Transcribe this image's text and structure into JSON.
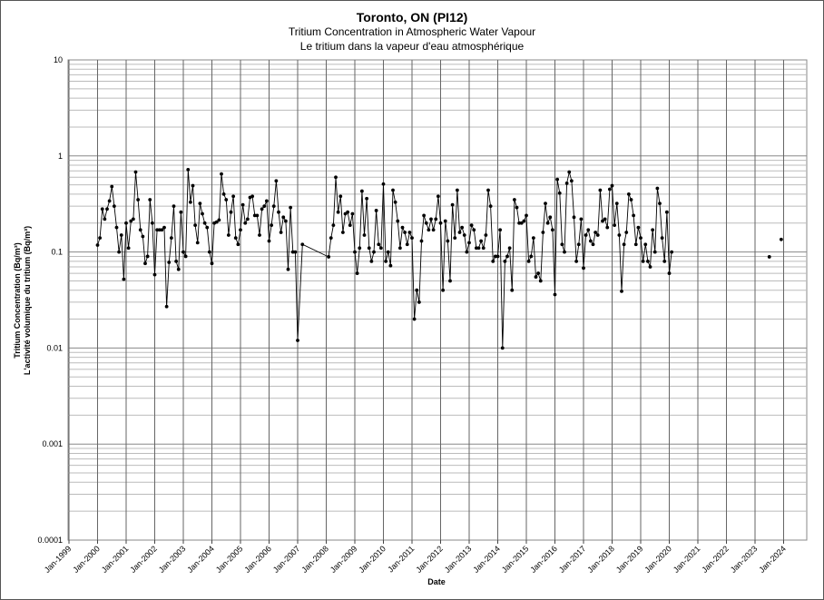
{
  "chart_data": {
    "type": "scatter",
    "title": "Toronto, ON (PI12)",
    "subtitle_en": "Tritium Concentration in Atmospheric Water Vapour",
    "subtitle_fr": "Le tritium dans la vapeur d'eau atmosphérique",
    "xlabel": "Date",
    "ylabel_en": "Tritium Concentration (Bq/m³)",
    "ylabel_fr": "L'activité volumique du tritium (Bq/m³)",
    "y_scale": "log",
    "ylim": [
      0.0001,
      10
    ],
    "y_ticks": [
      "10",
      "1",
      "0.1",
      "0.01",
      "0.001",
      "0.0001"
    ],
    "x_ticks": [
      "Jan-1999",
      "Jan-2000",
      "Jan-2001",
      "Jan-2002",
      "Jan-2003",
      "Jan-2004",
      "Jan-2005",
      "Jan-2006",
      "Jan-2007",
      "Jan-2008",
      "Jan-2009",
      "Jan-2010",
      "Jan-2011",
      "Jan-2012",
      "Jan-2013",
      "Jan-2014",
      "Jan-2015",
      "Jan-2016",
      "Jan-2017",
      "Jan-2018",
      "Jan-2019",
      "Jan-2020",
      "Jan-2021",
      "Jan-2022",
      "Jan-2023",
      "Jan-2024"
    ],
    "grid": true,
    "line_color": "#000000",
    "marker_color": "#000000",
    "series": [
      {
        "values": [
          0.118,
          0.14,
          0.28,
          0.22,
          0.28,
          0.34,
          0.48,
          0.3,
          0.18,
          0.1,
          0.15,
          0.052,
          0.2,
          0.11,
          0.21,
          0.22,
          0.68,
          0.35,
          0.17,
          0.145,
          0.076,
          0.09,
          0.35,
          0.2,
          0.058,
          0.17,
          0.17,
          0.17,
          0.18,
          0.027,
          0.078,
          0.14,
          0.3,
          0.08,
          0.066,
          0.26,
          0.1,
          0.09,
          0.72,
          0.33,
          0.49,
          0.19,
          0.125,
          0.32,
          0.25,
          0.2,
          0.18,
          0.1,
          0.076,
          0.2,
          0.205,
          0.215,
          0.65,
          0.4,
          0.35,
          0.15,
          0.26,
          0.38,
          0.14,
          0.12,
          0.17,
          0.31,
          0.2,
          0.22,
          0.37,
          0.38,
          0.24,
          0.24,
          0.15,
          0.28,
          0.3,
          0.34,
          0.13,
          0.19,
          0.3,
          0.55,
          0.26,
          0.16,
          0.23,
          0.21,
          0.066,
          0.29,
          0.1,
          0.1,
          0.012,
          0.12,
          0.089,
          0.14,
          0.19,
          0.6,
          0.26,
          0.38,
          0.16,
          0.25,
          0.26,
          0.19,
          0.25,
          0.1,
          0.06,
          0.11,
          0.43,
          0.15,
          0.36,
          0.11,
          0.08,
          0.1,
          0.27,
          0.12,
          0.11,
          0.51,
          0.08,
          0.1,
          0.072,
          0.44,
          0.33,
          0.21,
          0.11,
          0.18,
          0.16,
          0.12,
          0.16,
          0.14,
          0.02,
          0.04,
          0.03,
          0.13,
          0.24,
          0.2,
          0.17,
          0.22,
          0.17,
          0.22,
          0.38,
          0.2,
          0.04,
          0.21,
          0.13,
          0.05,
          0.31,
          0.14,
          0.44,
          0.16,
          0.18,
          0.15,
          0.1,
          0.125,
          0.19,
          0.17,
          0.11,
          0.11,
          0.13,
          0.11,
          0.15,
          0.44,
          0.3,
          0.08,
          0.09,
          0.09,
          0.17,
          0.01,
          0.08,
          0.09,
          0.11,
          0.04,
          0.35,
          0.29,
          0.2,
          0.2,
          0.21,
          0.24,
          0.08,
          0.09,
          0.14,
          0.055,
          0.06,
          0.05,
          0.16,
          0.32,
          0.2,
          0.23,
          0.17,
          0.036,
          0.57,
          0.41,
          0.12,
          0.1,
          0.52,
          0.68,
          0.55,
          0.23,
          0.08,
          0.12,
          0.22,
          0.068,
          0.15,
          0.17,
          0.13,
          0.12,
          0.16,
          0.15,
          0.44,
          0.21,
          0.22,
          0.18,
          0.45,
          0.49,
          0.19,
          0.32,
          0.15,
          0.039,
          0.12,
          0.16,
          0.4,
          0.35,
          0.24,
          0.12,
          0.18,
          0.14,
          0.08,
          0.12,
          0.08,
          0.07,
          0.17,
          0.1,
          0.46,
          0.32,
          0.14,
          0.08,
          0.26,
          0.06,
          0.1
        ]
      },
      {
        "x": [
          "Jul-2023",
          "Dec-2023"
        ],
        "values": [
          0.089,
          0.135
        ]
      }
    ]
  }
}
